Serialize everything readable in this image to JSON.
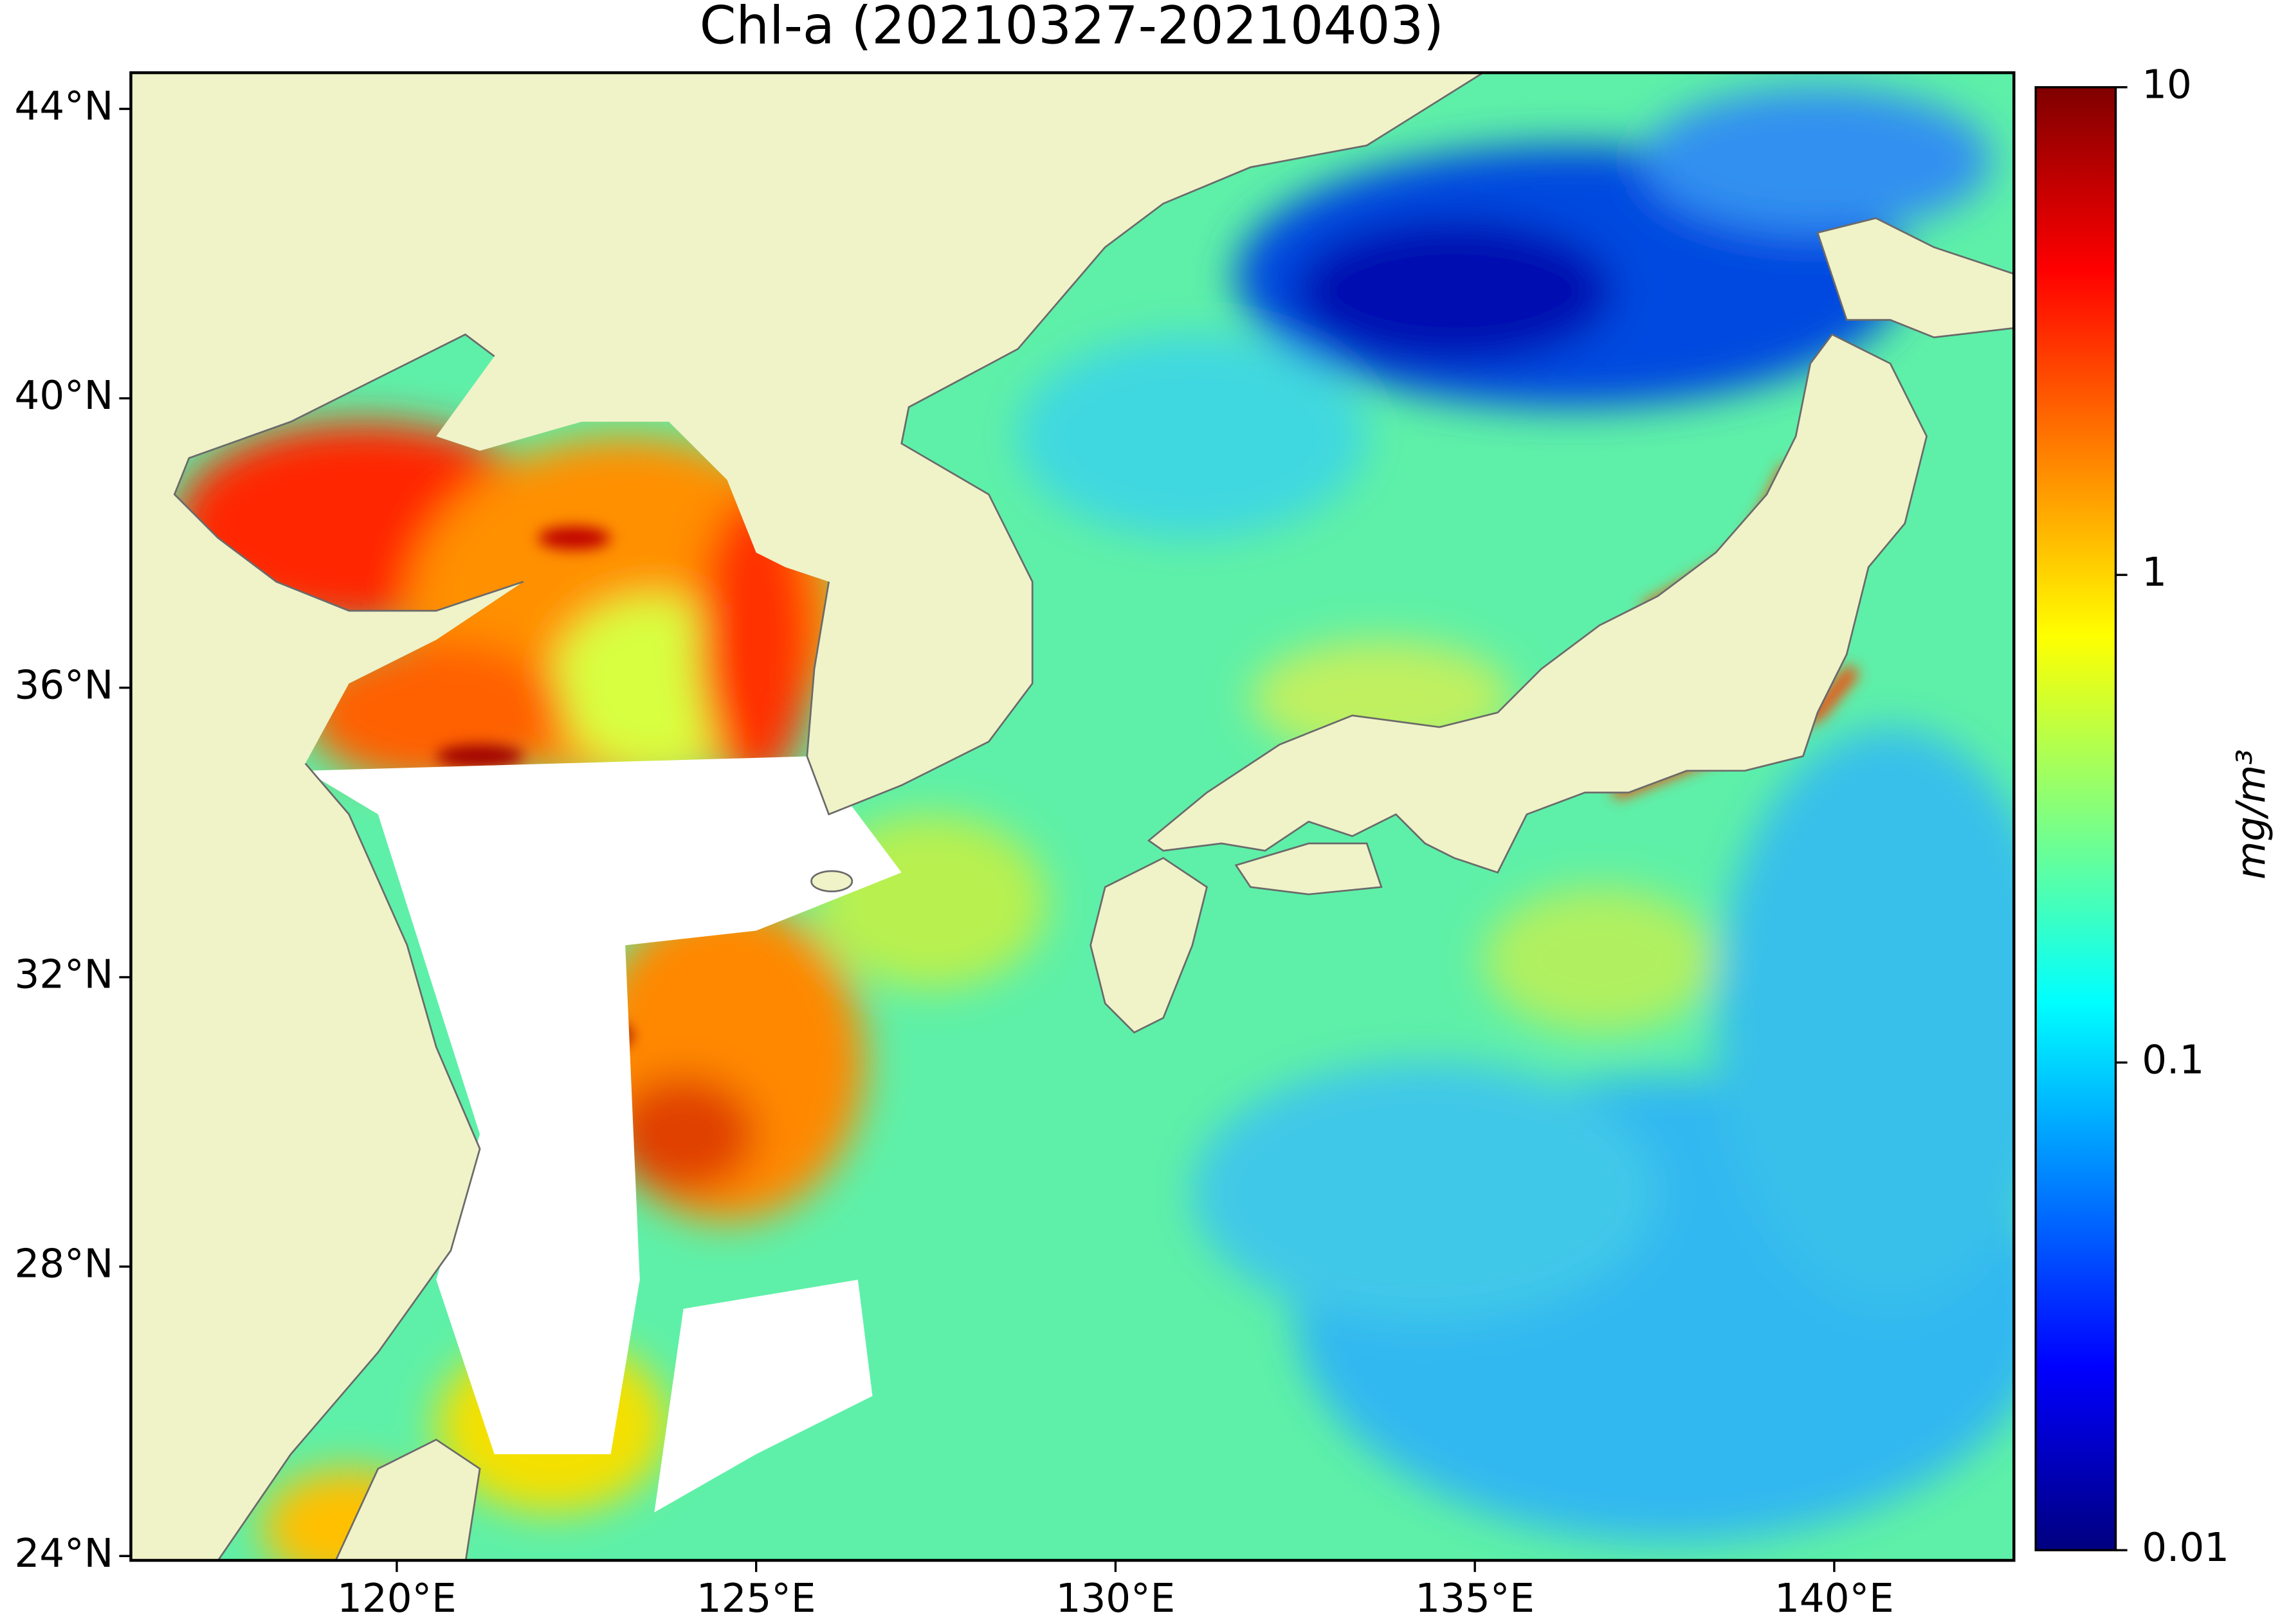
{
  "chart_data": {
    "type": "map",
    "title": "Chl-a (20210327-20210403)",
    "xlim": [
      116.3,
      142.5
    ],
    "ylim": [
      23.94,
      44.5
    ],
    "xticks": [
      {
        "value": 120,
        "label": "120°E"
      },
      {
        "value": 125,
        "label": "125°E"
      },
      {
        "value": 130,
        "label": "130°E"
      },
      {
        "value": 135,
        "label": "135°E"
      },
      {
        "value": 140,
        "label": "140°E"
      }
    ],
    "yticks": [
      {
        "value": 24,
        "label": "24°N"
      },
      {
        "value": 28,
        "label": "28°N"
      },
      {
        "value": 32,
        "label": "32°N"
      },
      {
        "value": 36,
        "label": "36°N"
      },
      {
        "value": 40,
        "label": "40°N"
      },
      {
        "value": 44,
        "label": "44°N"
      }
    ],
    "land_color": "#f0f2c8",
    "colorbar": {
      "label": "mg/m³",
      "scale": "log",
      "lim": [
        0.01,
        10
      ],
      "ticks": [
        0.01,
        0.1,
        1,
        10
      ],
      "colormap": [
        "#00007f",
        "#0000ff",
        "#0080ff",
        "#00ffff",
        "#80ff80",
        "#ffff00",
        "#ff8000",
        "#ff0000",
        "#7f0000"
      ]
    }
  }
}
